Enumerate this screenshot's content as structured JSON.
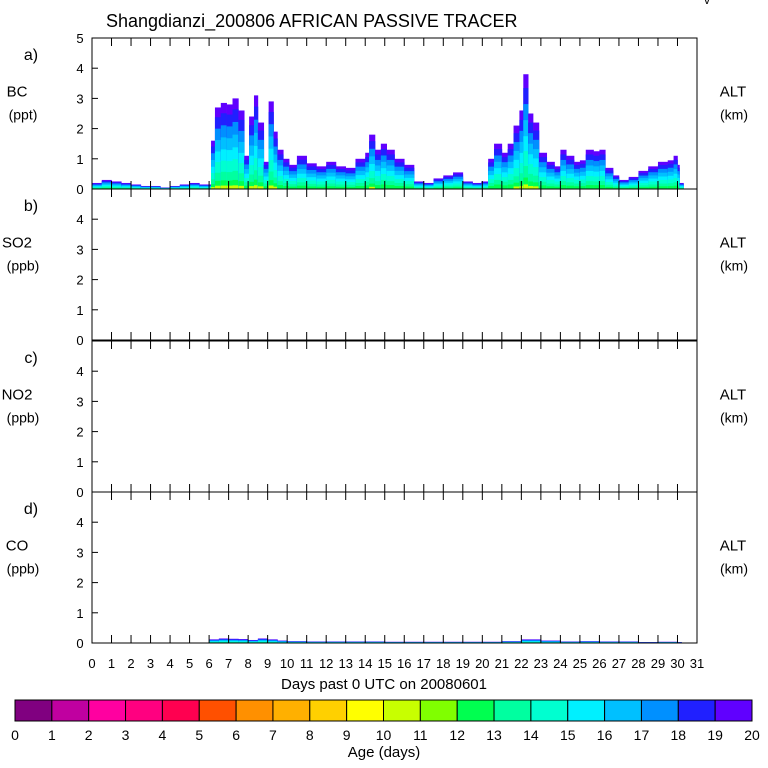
{
  "title": "Shangdianzi_200806 AFRICAN PASSIVE TRACER",
  "corner_mark": "v",
  "chart_data": {
    "type": "bar",
    "title": "Shangdianzi_200806 AFRICAN PASSIVE TRACER",
    "xlabel": "Days past 0 UTC on 20080601",
    "x_ticks": [
      "0",
      "1",
      "2",
      "3",
      "4",
      "5",
      "6",
      "7",
      "8",
      "9",
      "10",
      "11",
      "12",
      "13",
      "14",
      "15",
      "16",
      "17",
      "18",
      "19",
      "20",
      "21",
      "22",
      "23",
      "24",
      "25",
      "26",
      "27",
      "28",
      "29",
      "30",
      "31"
    ],
    "xlim": [
      0,
      31
    ],
    "panels": [
      {
        "id": "a",
        "letter": "a)",
        "label": "BC",
        "unit": "(ppt)",
        "right_label": "ALT",
        "right_unit": "(km)",
        "ylim": [
          0,
          5
        ],
        "y_ticks": [
          "0",
          "1",
          "2",
          "3",
          "4",
          "5"
        ],
        "stacked": true,
        "series": [
          {
            "x": [
              0,
              0.5,
              1,
              1.5,
              2,
              2.5,
              3,
              3.5,
              4,
              4.5,
              5,
              5.5,
              5.95,
              6.1,
              6.3,
              6.6,
              6.9,
              7.2,
              7.5,
              7.8,
              8.05,
              8.3,
              8.5,
              8.8,
              9.05,
              9.3,
              9.5,
              9.8,
              10.1,
              10.5,
              11,
              11.5,
              12,
              12.5,
              13,
              13.5,
              14,
              14.2,
              14.5,
              14.8,
              15.1,
              15.5,
              16,
              16.5,
              17,
              17.5,
              18,
              18.5,
              19,
              19.5,
              19.95,
              20.3,
              20.6,
              21,
              21.3,
              21.6,
              21.9,
              22.1,
              22.35,
              22.6,
              22.9,
              23.3,
              23.7,
              24,
              24.3,
              24.7,
              25,
              25.3,
              25.7,
              26,
              26.3,
              26.7,
              27,
              27.5,
              28,
              28.5,
              29,
              29.5,
              29.8,
              30,
              30.1
            ],
            "total": [
              0.2,
              0.3,
              0.25,
              0.2,
              0.15,
              0.1,
              0.1,
              0.05,
              0.1,
              0.15,
              0.2,
              0.15,
              0.15,
              1.6,
              2.7,
              2.85,
              2.8,
              3.0,
              2.6,
              1.1,
              2.4,
              3.1,
              2.2,
              0.9,
              2.9,
              1.9,
              1.3,
              1.0,
              0.8,
              1.1,
              0.85,
              0.75,
              0.9,
              0.75,
              0.7,
              1.0,
              1.2,
              1.8,
              1.3,
              1.5,
              1.3,
              1.0,
              0.8,
              0.25,
              0.2,
              0.35,
              0.45,
              0.55,
              0.25,
              0.2,
              0.25,
              1.0,
              1.5,
              1.2,
              1.5,
              2.1,
              2.6,
              3.8,
              2.5,
              2.2,
              1.2,
              0.9,
              0.75,
              1.3,
              1.1,
              0.9,
              0.95,
              1.3,
              1.25,
              1.3,
              0.7,
              0.45,
              0.3,
              0.4,
              0.6,
              0.75,
              0.9,
              0.95,
              1.1,
              0.8,
              0.2
            ],
            "note": "stacked by age; colour by age (days)"
          }
        ]
      },
      {
        "id": "b",
        "letter": "b)",
        "label": "SO2",
        "unit": "(ppb)",
        "right_label": "ALT",
        "right_unit": "(km)",
        "ylim": [
          0,
          5
        ],
        "y_ticks": [
          "0",
          "1",
          "2",
          "3",
          "4"
        ],
        "series": []
      },
      {
        "id": "c",
        "letter": "c)",
        "label": "NO2",
        "unit": "(ppb)",
        "right_label": "ALT",
        "right_unit": "(km)",
        "ylim": [
          0,
          5
        ],
        "y_ticks": [
          "0",
          "1",
          "2",
          "3",
          "4"
        ],
        "series": []
      },
      {
        "id": "d",
        "letter": "d)",
        "label": "CO",
        "unit": "(ppb)",
        "right_label": "ALT",
        "right_unit": "(km)",
        "ylim": [
          0,
          5
        ],
        "y_ticks": [
          "0",
          "1",
          "2",
          "3",
          "4"
        ],
        "stacked": true,
        "series": [
          {
            "x": [
              6.0,
              6.5,
              7.0,
              7.5,
              8.0,
              8.5,
              9.0,
              9.5,
              10,
              11,
              14,
              15,
              20,
              21,
              22,
              23,
              24,
              25,
              26,
              28,
              29,
              30
            ],
            "total": [
              0.12,
              0.15,
              0.14,
              0.13,
              0.1,
              0.15,
              0.12,
              0.08,
              0.06,
              0.05,
              0.05,
              0.04,
              0.04,
              0.06,
              0.12,
              0.08,
              0.05,
              0.06,
              0.05,
              0.03,
              0.04,
              0.03
            ]
          }
        ]
      }
    ],
    "colorbar": {
      "label": "Age (days)",
      "ticks": [
        "0",
        "1",
        "2",
        "3",
        "4",
        "5",
        "6",
        "7",
        "8",
        "9",
        "10",
        "11",
        "12",
        "13",
        "14",
        "15",
        "16",
        "17",
        "18",
        "19",
        "20"
      ],
      "colors": [
        "#800080",
        "#c000a0",
        "#ff00a0",
        "#ff0080",
        "#ff0050",
        "#ff5000",
        "#ff9000",
        "#ffb000",
        "#ffd000",
        "#ffff00",
        "#c8ff00",
        "#80ff00",
        "#00ff50",
        "#00ffa0",
        "#00ffd0",
        "#00f0ff",
        "#00c0ff",
        "#0090ff",
        "#2020ff",
        "#6000ff"
      ]
    }
  }
}
